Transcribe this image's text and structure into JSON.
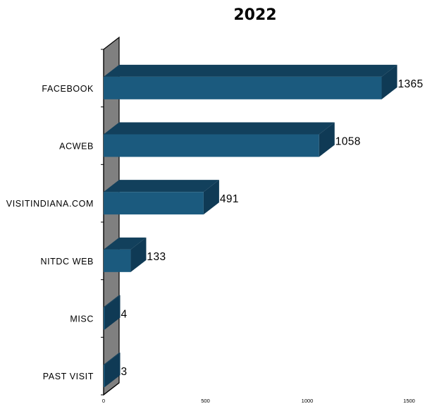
{
  "chart_data": {
    "type": "bar",
    "orientation": "horizontal",
    "title": "2022",
    "categories": [
      "FACEBOOK",
      "ACWEB",
      "VISITINDIANA.COM",
      "NITDC WEB",
      "MISC",
      "PAST VISIT"
    ],
    "values": [
      1365,
      1058,
      491,
      133,
      4,
      3
    ],
    "value_labels": [
      "1365",
      "1058",
      "491",
      "133",
      "4",
      "3"
    ],
    "x_ticks": [
      0,
      500,
      1000,
      1500
    ],
    "x_tick_labels": [
      "0",
      "500",
      "1000",
      "1500"
    ],
    "xlim": [
      0,
      1500
    ],
    "xlabel": "",
    "ylabel": "",
    "grid": false,
    "legend": "none",
    "style": "3d",
    "colors": {
      "bar_front": "#1b5a7e",
      "bar_top": "#12405c",
      "bar_side": "#0f3a55",
      "wall_front": "#808080",
      "wall_side": "#a6a6a6",
      "axis": "#000000"
    }
  }
}
